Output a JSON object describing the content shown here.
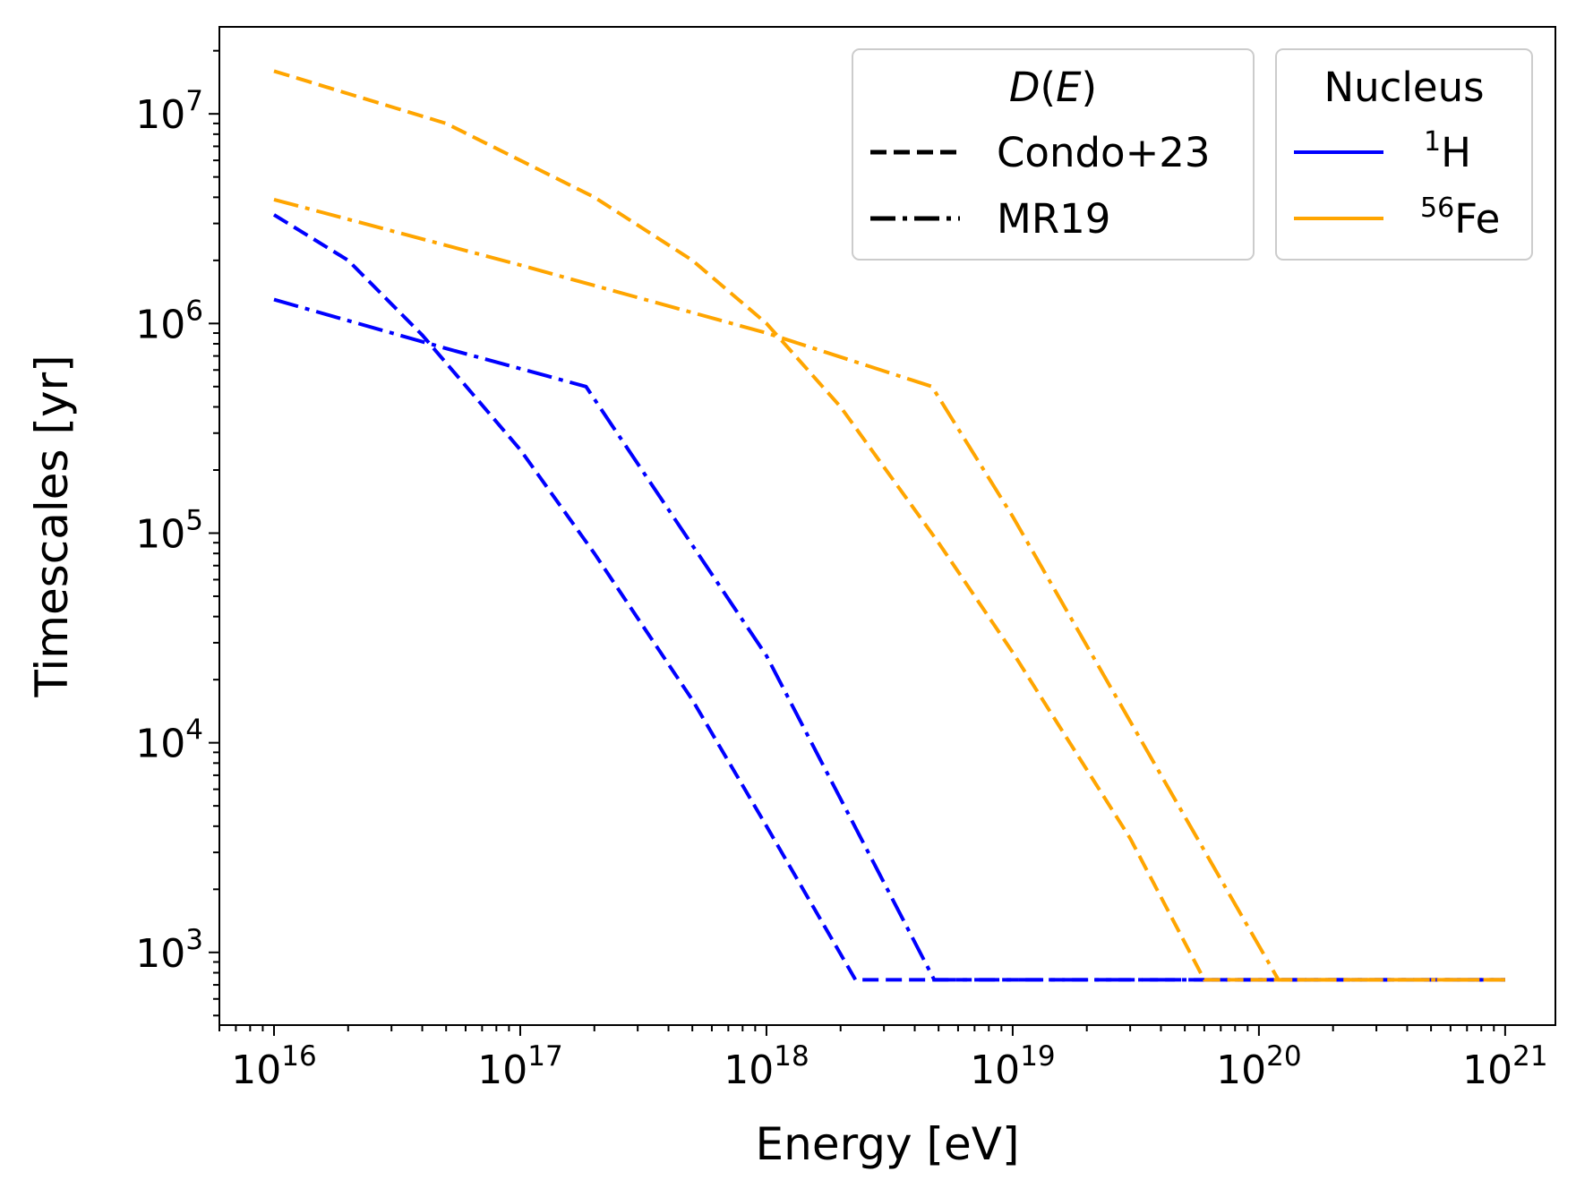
{
  "chart_data": {
    "type": "line",
    "xlabel": "Energy [eV]",
    "ylabel": "Timescales [yr]",
    "xscale": "log",
    "yscale": "log",
    "xlim": [
      6000000000000000.0,
      1.6e+21
    ],
    "ylim": [
      450,
      26000000.0
    ],
    "x_ticks": [
      {
        "value": 1e+16,
        "base": "10",
        "exp": "16"
      },
      {
        "value": 1e+17,
        "base": "10",
        "exp": "17"
      },
      {
        "value": 1e+18,
        "base": "10",
        "exp": "18"
      },
      {
        "value": 1e+19,
        "base": "10",
        "exp": "19"
      },
      {
        "value": 1e+20,
        "base": "10",
        "exp": "20"
      },
      {
        "value": 1e+21,
        "base": "10",
        "exp": "21"
      }
    ],
    "y_ticks": [
      {
        "value": 1000.0,
        "base": "10",
        "exp": "3"
      },
      {
        "value": 10000.0,
        "base": "10",
        "exp": "4"
      },
      {
        "value": 100000.0,
        "base": "10",
        "exp": "5"
      },
      {
        "value": 1000000.0,
        "base": "10",
        "exp": "6"
      },
      {
        "value": 10000000.0,
        "base": "10",
        "exp": "7"
      }
    ],
    "grid": false,
    "legends": [
      {
        "title": "D(E)",
        "title_parts": {
          "d": "D",
          "open": "(",
          "e": "E",
          "close": ")"
        },
        "position": "top-center-right",
        "entries": [
          {
            "label": "Condo+23",
            "style": "dashed",
            "color": "#000000"
          },
          {
            "label": "MR19",
            "style": "dashdot",
            "color": "#000000"
          }
        ]
      },
      {
        "title": "Nucleus",
        "position": "top-right",
        "entries": [
          {
            "label_sup": "1",
            "label_base": "H",
            "style": "solid",
            "color": "#0000ff"
          },
          {
            "label_sup": "56",
            "label_base": "Fe",
            "style": "solid",
            "color": "#ffa500"
          }
        ]
      }
    ],
    "series": [
      {
        "nucleus": "1H",
        "model": "Condo+23",
        "style": "dashed",
        "color": "#0000ff",
        "x": [
          1e+16,
          2e+16,
          4e+16,
          1e+17,
          2e+17,
          5e+17,
          1e+18,
          2.3e+18,
          5e+18,
          1e+19,
          1e+20,
          1e+21
        ],
        "y": [
          3300000.0,
          2000000.0,
          880000.0,
          250000.0,
          80000.0,
          16000.0,
          4000.0,
          740,
          740,
          740,
          740,
          740
        ]
      },
      {
        "nucleus": "1H",
        "model": "MR19",
        "style": "dashdot",
        "color": "#0000ff",
        "x": [
          1e+16,
          5e+16,
          1.85e+17,
          1e+18,
          4.8e+18,
          1e+19,
          1e+20,
          1e+21
        ],
        "y": [
          1300000.0,
          760000.0,
          500000.0,
          26000.0,
          740,
          740,
          740,
          740
        ]
      },
      {
        "nucleus": "56Fe",
        "model": "Condo+23",
        "style": "dashed",
        "color": "#ffa500",
        "x": [
          1e+16,
          5e+16,
          2e+17,
          5e+17,
          1e+18,
          2e+18,
          5e+18,
          1e+19,
          3e+19,
          6e+19,
          1e+20,
          1e+21
        ],
        "y": [
          16000000.0,
          9000000.0,
          4000000.0,
          2000000.0,
          1000000.0,
          400000.0,
          90000.0,
          27000.0,
          3500.0,
          740,
          740,
          740
        ]
      },
      {
        "nucleus": "56Fe",
        "model": "MR19",
        "style": "dashdot",
        "color": "#ffa500",
        "x": [
          1e+16,
          1e+17,
          1e+18,
          4.7e+18,
          1e+19,
          1.2e+20,
          1e+21
        ],
        "y": [
          3900000.0,
          1900000.0,
          900000.0,
          500000.0,
          120000.0,
          740,
          740
        ]
      }
    ]
  }
}
